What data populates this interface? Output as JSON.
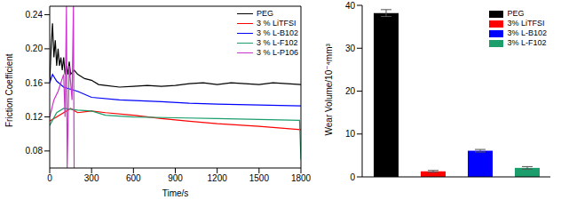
{
  "chart_data": [
    {
      "type": "line",
      "x_label": "Time/s",
      "y_label": "Friction Coefficient",
      "xlim": [
        0,
        1800
      ],
      "xticks": [
        0,
        300,
        600,
        900,
        1200,
        1500,
        1800
      ],
      "ylim": [
        0.06,
        0.25
      ],
      "yticks": [
        0.08,
        0.12,
        0.16,
        {
          "value": 0.2,
          "label": "0.20"
        },
        0.24
      ],
      "legend": "upper right",
      "series": [
        {
          "name": "PEG",
          "color": "#000000",
          "x": [
            0,
            10,
            20,
            30,
            40,
            50,
            60,
            70,
            80,
            90,
            100,
            110,
            120,
            130,
            140,
            150,
            175,
            200,
            250,
            300,
            350,
            400,
            500,
            600,
            700,
            800,
            900,
            1000,
            1100,
            1200,
            1300,
            1400,
            1500,
            1600,
            1700,
            1800
          ],
          "values": [
            0.16,
            0.2,
            0.23,
            0.19,
            0.21,
            0.18,
            0.2,
            0.18,
            0.19,
            0.175,
            0.19,
            0.17,
            0.18,
            0.17,
            0.185,
            0.17,
            0.175,
            0.17,
            0.165,
            0.163,
            0.158,
            0.157,
            0.155,
            0.156,
            0.157,
            0.156,
            0.157,
            0.159,
            0.16,
            0.158,
            0.16,
            0.159,
            0.158,
            0.16,
            0.159,
            0.158
          ]
        },
        {
          "name": "3 % LiTFSI",
          "color": "#ff0000",
          "x": [
            0,
            50,
            100,
            150,
            200,
            300,
            400,
            600,
            800,
            1000,
            1200,
            1500,
            1800
          ],
          "values": [
            0.115,
            0.12,
            0.125,
            0.13,
            0.125,
            0.127,
            0.125,
            0.122,
            0.118,
            0.115,
            0.112,
            0.109,
            0.105
          ]
        },
        {
          "name": "3 % L-B102",
          "color": "#0000ff",
          "x": [
            0,
            20,
            50,
            100,
            200,
            300,
            500,
            800,
            1000,
            1200,
            1500,
            1800
          ],
          "values": [
            0.16,
            0.17,
            0.162,
            0.155,
            0.15,
            0.143,
            0.14,
            0.138,
            0.136,
            0.135,
            0.134,
            0.133
          ]
        },
        {
          "name": "3 % L-F102",
          "color": "#1b9e6b",
          "x": [
            0,
            50,
            100,
            200,
            300,
            400,
            600,
            900,
            1200,
            1500,
            1790,
            1800
          ],
          "values": [
            0.11,
            0.125,
            0.13,
            0.128,
            0.127,
            0.122,
            0.12,
            0.119,
            0.118,
            0.117,
            0.116,
            0.07
          ]
        },
        {
          "name": "3 % L-P106",
          "color": "#cc33cc",
          "x": [
            0,
            30,
            60,
            100,
            110,
            120,
            125,
            140,
            160,
            170,
            175
          ],
          "values": [
            0.12,
            0.14,
            0.15,
            0.17,
            0.12,
            0.25,
            0.06,
            0.18,
            0.14,
            0.25,
            0.06
          ]
        }
      ]
    },
    {
      "type": "bar",
      "y_label": "Wear Volume/10⁻⁴mm³",
      "categories": [
        "PEG",
        "3% LiTFSI",
        "3% L-B102",
        "3% L-F102"
      ],
      "values": [
        38.2,
        1.3,
        6.1,
        2.1
      ],
      "errors": [
        0.8,
        0.2,
        0.3,
        0.3
      ],
      "colors": [
        "#000000",
        "#ff0000",
        "#0000ff",
        "#1b9e6b"
      ],
      "ylim": [
        0,
        40
      ],
      "yticks": [
        0,
        10,
        20,
        30,
        40
      ],
      "legend": "upper right",
      "tick_labels": "y"
    }
  ]
}
